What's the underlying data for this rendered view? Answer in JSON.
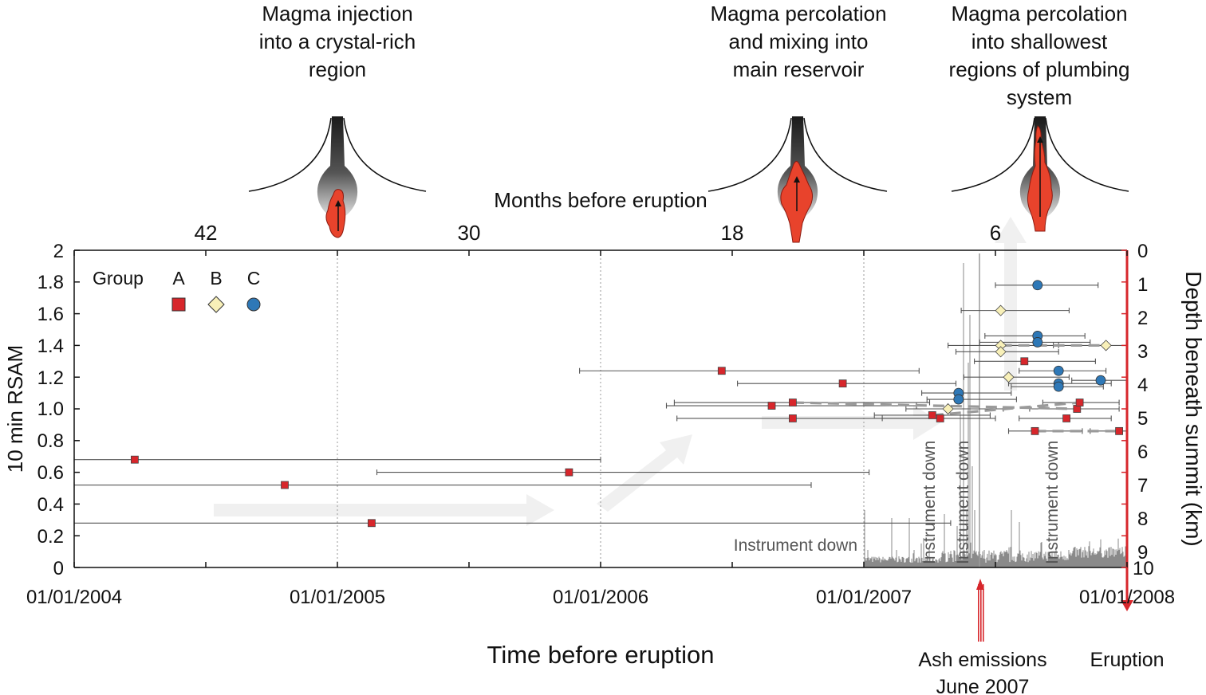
{
  "stages": [
    {
      "line1": "Magma injection",
      "line2": "into a crystal-rich",
      "line3": "region"
    },
    {
      "line1": "Magma percolation",
      "line2": "and mixing into",
      "line3": "main reservoir"
    },
    {
      "line1": "Magma percolation",
      "line2": "into shallowest",
      "line3": "regions of plumbing",
      "line4": "system"
    }
  ],
  "colors": {
    "group_a": "#d7262b",
    "group_b": "#f8f0b8",
    "group_c": "#2e78b7",
    "eruption": "#d7262b",
    "rsam": "#8a8a8a"
  },
  "chart_data": {
    "type": "scatter",
    "title": "",
    "xlabel": "Time before eruption",
    "x_tick_labels": [
      "01/01/2004",
      "01/01/2005",
      "01/01/2006",
      "01/01/2007",
      "01/01/2008"
    ],
    "x_range_years": [
      2004.0,
      2008.0
    ],
    "top_axis_label": "Months before eruption",
    "top_tick_labels": [
      "42",
      "30",
      "18",
      "6"
    ],
    "ylabel": "10 min RSAM",
    "ylim": [
      0,
      2
    ],
    "y_tick_labels": [
      "0",
      "0.2",
      "0.4",
      "0.6",
      "0.8",
      "1.0",
      "1.2",
      "1.4",
      "1.6",
      "1.8",
      "2"
    ],
    "y2label": "Depth beneath summit (km)",
    "y2lim": [
      0,
      10
    ],
    "y2_tick_labels": [
      "0",
      "1",
      "2",
      "3",
      "4",
      "5",
      "6",
      "7",
      "8",
      "9",
      "10"
    ],
    "legend": {
      "title": "Group",
      "entries": [
        {
          "label": "A",
          "marker": "square"
        },
        {
          "label": "B",
          "marker": "diamond"
        },
        {
          "label": "C",
          "marker": "circle"
        }
      ]
    },
    "annotations": {
      "instrument_down": "Instrument down",
      "ash": [
        "Ash emissions",
        "June 2007"
      ],
      "eruption": "Eruption"
    },
    "series": [
      {
        "name": "A",
        "points": [
          {
            "t": 2004.23,
            "depth": 6.6,
            "t_min": 2004.0,
            "t_max": 2006.0
          },
          {
            "t": 2004.8,
            "depth": 7.4,
            "t_min": 2004.0,
            "t_max": 2006.8
          },
          {
            "t": 2005.13,
            "depth": 8.6,
            "t_min": 2004.0,
            "t_max": 2007.33
          },
          {
            "t": 2005.88,
            "depth": 7.0,
            "t_min": 2005.15,
            "t_max": 2007.02
          },
          {
            "t": 2006.46,
            "depth": 3.8,
            "t_min": 2005.92,
            "t_max": 2007.21
          },
          {
            "t": 2006.65,
            "depth": 4.9,
            "t_min": 2006.25,
            "t_max": 2007.2
          },
          {
            "t": 2006.73,
            "depth": 4.8,
            "t_min": 2006.28,
            "t_max": 2007.25
          },
          {
            "t": 2006.73,
            "depth": 5.3,
            "t_min": 2006.29,
            "t_max": 2007.3
          },
          {
            "t": 2006.92,
            "depth": 4.2,
            "t_min": 2006.52,
            "t_max": 2007.35
          },
          {
            "t": 2007.26,
            "depth": 5.2,
            "t_min": 2007.04,
            "t_max": 2007.48
          },
          {
            "t": 2007.29,
            "depth": 5.3,
            "t_min": 2007.07,
            "t_max": 2007.5
          },
          {
            "t": 2007.61,
            "depth": 3.5,
            "t_min": 2007.42,
            "t_max": 2007.88
          },
          {
            "t": 2007.65,
            "depth": 5.7,
            "t_min": 2007.55,
            "t_max": 2007.83
          },
          {
            "t": 2007.77,
            "depth": 5.3,
            "t_min": 2007.59,
            "t_max": 2007.94
          },
          {
            "t": 2007.81,
            "depth": 5.0,
            "t_min": 2007.63,
            "t_max": 2007.97
          },
          {
            "t": 2007.82,
            "depth": 4.8,
            "t_min": 2007.68,
            "t_max": 2007.97
          },
          {
            "t": 2007.97,
            "depth": 5.7,
            "t_min": 2007.86,
            "t_max": 2008.0
          }
        ]
      },
      {
        "name": "B",
        "points": [
          {
            "t": 2007.52,
            "depth": 1.9,
            "t_min": 2007.37,
            "t_max": 2007.78
          },
          {
            "t": 2007.52,
            "depth": 3.0,
            "t_min": 2007.32,
            "t_max": 2007.72
          },
          {
            "t": 2007.52,
            "depth": 3.2,
            "t_min": 2007.35,
            "t_max": 2007.74
          },
          {
            "t": 2007.55,
            "depth": 4.0,
            "t_min": 2007.38,
            "t_max": 2007.78
          },
          {
            "t": 2007.92,
            "depth": 3.0,
            "t_min": 2007.74,
            "t_max": 2008.0
          },
          {
            "t": 2007.32,
            "depth": 5.0,
            "t_min": 2007.16,
            "t_max": 2007.53
          }
        ]
      },
      {
        "name": "C",
        "points": [
          {
            "t": 2007.66,
            "depth": 1.1,
            "t_min": 2007.5,
            "t_max": 2007.89
          },
          {
            "t": 2007.66,
            "depth": 2.7,
            "t_min": 2007.46,
            "t_max": 2007.84
          },
          {
            "t": 2007.66,
            "depth": 2.9,
            "t_min": 2007.44,
            "t_max": 2007.86
          },
          {
            "t": 2007.74,
            "depth": 3.8,
            "t_min": 2007.59,
            "t_max": 2007.92
          },
          {
            "t": 2007.74,
            "depth": 4.2,
            "t_min": 2007.55,
            "t_max": 2007.94
          },
          {
            "t": 2007.74,
            "depth": 4.3,
            "t_min": 2007.56,
            "t_max": 2007.91
          },
          {
            "t": 2007.9,
            "depth": 4.1,
            "t_min": 2007.79,
            "t_max": 2008.0
          },
          {
            "t": 2007.36,
            "depth": 4.5,
            "t_min": 2007.22,
            "t_max": 2007.56
          },
          {
            "t": 2007.36,
            "depth": 4.7,
            "t_min": 2007.24,
            "t_max": 2007.58
          }
        ]
      }
    ]
  }
}
